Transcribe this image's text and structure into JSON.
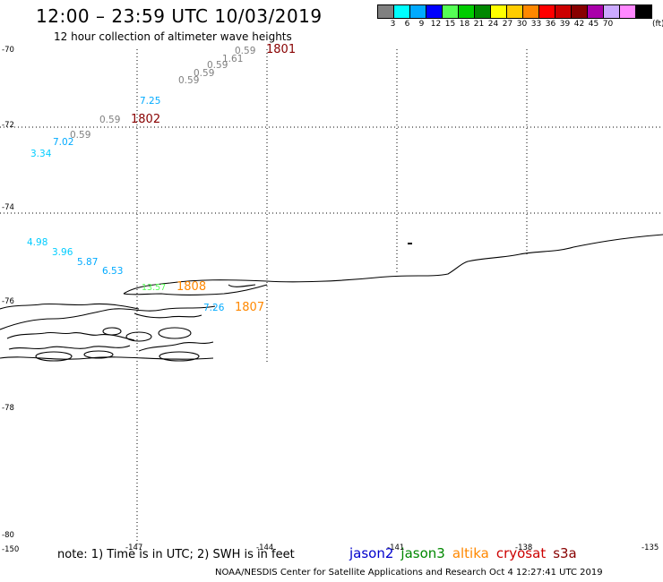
{
  "header": {
    "title": "12:00 – 23:59 UTC 10/03/2019",
    "subtitle": "12 hour collection of altimeter wave heights"
  },
  "colorbar": {
    "colors": [
      "#808080",
      "#00ffff",
      "#00aaff",
      "#0000ff",
      "#55ff55",
      "#00cc00",
      "#008800",
      "#ffff00",
      "#ffcc00",
      "#ff8800",
      "#ff0000",
      "#cc0000",
      "#880000",
      "#aa00aa",
      "#ccaaff",
      "#ff88ff",
      "#000000"
    ],
    "labels": [
      "3",
      "6",
      "9",
      "12",
      "15",
      "18",
      "21",
      "24",
      "27",
      "30",
      "33",
      "36",
      "39",
      "42",
      "45",
      "70"
    ],
    "unit": "(ft)"
  },
  "axes": {
    "lat_labels": [
      "-70",
      "-72",
      "-74",
      "-76",
      "-78",
      "-80"
    ],
    "lon_labels": [
      "-150",
      "-147",
      "-144",
      "-141",
      "-138",
      "-135"
    ]
  },
  "observations": [
    {
      "text": "0.59",
      "color": "#808080"
    },
    {
      "text": "1.61",
      "color": "#808080"
    },
    {
      "text": "0.59",
      "color": "#808080"
    },
    {
      "text": "0.59",
      "color": "#808080"
    },
    {
      "text": "0.59",
      "color": "#808080"
    },
    {
      "text": "7.25",
      "color": "#00aaff"
    },
    {
      "text": "0.59",
      "color": "#808080"
    },
    {
      "text": "0.59",
      "color": "#808080"
    },
    {
      "text": "7.02",
      "color": "#00aaff"
    },
    {
      "text": "3.34",
      "color": "#00ccff"
    },
    {
      "text": "4.98",
      "color": "#00ccff"
    },
    {
      "text": "3.96",
      "color": "#00ccff"
    },
    {
      "text": "5.87",
      "color": "#00aaff"
    },
    {
      "text": "6.53",
      "color": "#00aaff"
    },
    {
      "text": "13.57",
      "color": "#55ff55"
    },
    {
      "text": "7.26",
      "color": "#00aaff"
    }
  ],
  "pass_times": [
    {
      "text": "1801",
      "color": "#880000"
    },
    {
      "text": "1802",
      "color": "#880000"
    },
    {
      "text": "1808",
      "color": "#ff8800"
    },
    {
      "text": "1807",
      "color": "#ff8800"
    }
  ],
  "footer": {
    "note": "note: 1) Time is in UTC; 2) SWH is in feet",
    "legend": [
      {
        "name": "jason2",
        "color": "#0000cc"
      },
      {
        "name": "jason3",
        "color": "#008800"
      },
      {
        "name": "altika",
        "color": "#ff8800"
      },
      {
        "name": "cryosat",
        "color": "#cc0000"
      },
      {
        "name": "s3a",
        "color": "#880000"
      }
    ],
    "credit": "NOAA/NESDIS Center for Satellite Applications and Research    Oct  4 12:27:41 UTC 2019"
  }
}
